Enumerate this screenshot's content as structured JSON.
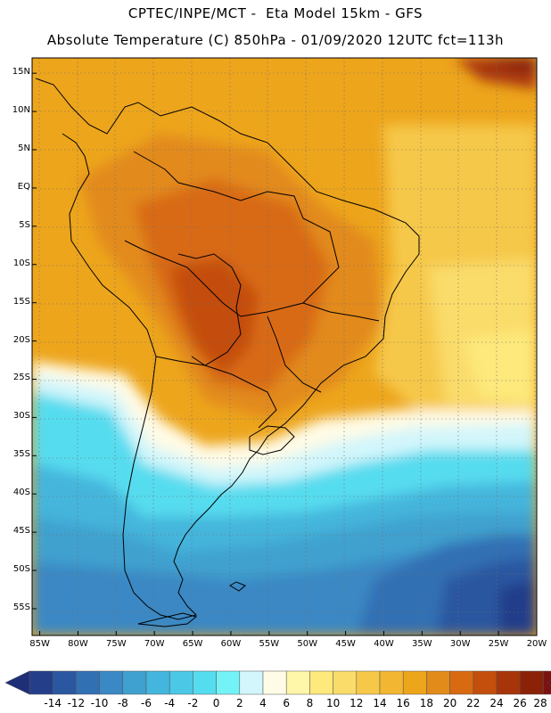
{
  "header": {
    "title_line1": "CPTEC/INPE/MCT -  Eta Model 15km - GFS",
    "title_line2": "Absolute Temperature (C) 850hPa - 01/09/2020 12UTC fct=113h"
  },
  "map": {
    "variable": "Absolute Temperature (C) 850hPa",
    "lat_labels": [
      "15N",
      "10N",
      "5N",
      "EQ",
      "5S",
      "10S",
      "15S",
      "20S",
      "25S",
      "30S",
      "35S",
      "40S",
      "45S",
      "50S",
      "55S"
    ],
    "lon_labels": [
      "85W",
      "80W",
      "75W",
      "70W",
      "65W",
      "60W",
      "55W",
      "50W",
      "45W",
      "40W",
      "35W",
      "30W",
      "25W",
      "20W"
    ],
    "lat_values": [
      15,
      10,
      5,
      0,
      -5,
      -10,
      -15,
      -20,
      -25,
      -30,
      -35,
      -40,
      -45,
      -50,
      -55
    ],
    "lon_values": [
      -85,
      -80,
      -75,
      -70,
      -65,
      -60,
      -55,
      -50,
      -45,
      -40,
      -35,
      -30,
      -25,
      -20
    ]
  },
  "colorbar": {
    "labels": [
      "-14",
      "-12",
      "-10",
      "-8",
      "-6",
      "-4",
      "-2",
      "0",
      "2",
      "4",
      "6",
      "8",
      "10",
      "12",
      "14",
      "16",
      "18",
      "20",
      "22",
      "24",
      "26",
      "28"
    ],
    "values": [
      -14,
      -12,
      -10,
      -8,
      -6,
      -4,
      -2,
      0,
      2,
      4,
      6,
      8,
      10,
      12,
      14,
      16,
      18,
      20,
      22,
      24,
      26,
      28
    ],
    "colors": [
      "#243e8a",
      "#2b57a0",
      "#3270b4",
      "#3a88c4",
      "#3fa1cf",
      "#44b5dc",
      "#4ac8e6",
      "#56dcef",
      "#73f3f7",
      "#d2f6fb",
      "#fffbe6",
      "#fef6a8",
      "#fde97c",
      "#fadc6a",
      "#f6c84a",
      "#f2b632",
      "#eda51c",
      "#e28a1a",
      "#d86a12",
      "#c44e0c",
      "#a8350a",
      "#8b2208",
      "#7a1212"
    ],
    "under_color": "#1e2f78",
    "over_color": "#72001c"
  }
}
